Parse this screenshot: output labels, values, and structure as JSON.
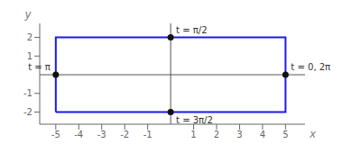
{
  "chart_data": {
    "type": "scatter",
    "x_label": "x",
    "y_label": "y",
    "xlim": [
      -5.7,
      5.85
    ],
    "ylim": [
      -2.65,
      2.75
    ],
    "xticks": [
      -5,
      -4,
      -3,
      -2,
      -1,
      1,
      2,
      3,
      4,
      5
    ],
    "yticks": [
      -2,
      -1,
      1,
      2
    ],
    "grid": false,
    "series": [
      {
        "type": "line",
        "color": "#1a1aee",
        "x": [
          -5,
          5,
          5,
          -5,
          -5
        ],
        "values": [
          -2,
          -2,
          2,
          2,
          -2
        ]
      },
      {
        "type": "scatter",
        "color": "#111111",
        "marker": "circle",
        "x": [
          0,
          0,
          -5,
          5
        ],
        "values": [
          2,
          -2,
          0,
          0
        ]
      }
    ],
    "annotations": [
      {
        "text": "t = π/2",
        "x": 0,
        "y": 2
      },
      {
        "text": "t = 3π/2",
        "x": 0,
        "y": -2
      },
      {
        "text": "t = π",
        "x": -5,
        "y": 0
      },
      {
        "text": "t = 0, 2π",
        "x": 5,
        "y": 0
      }
    ]
  }
}
